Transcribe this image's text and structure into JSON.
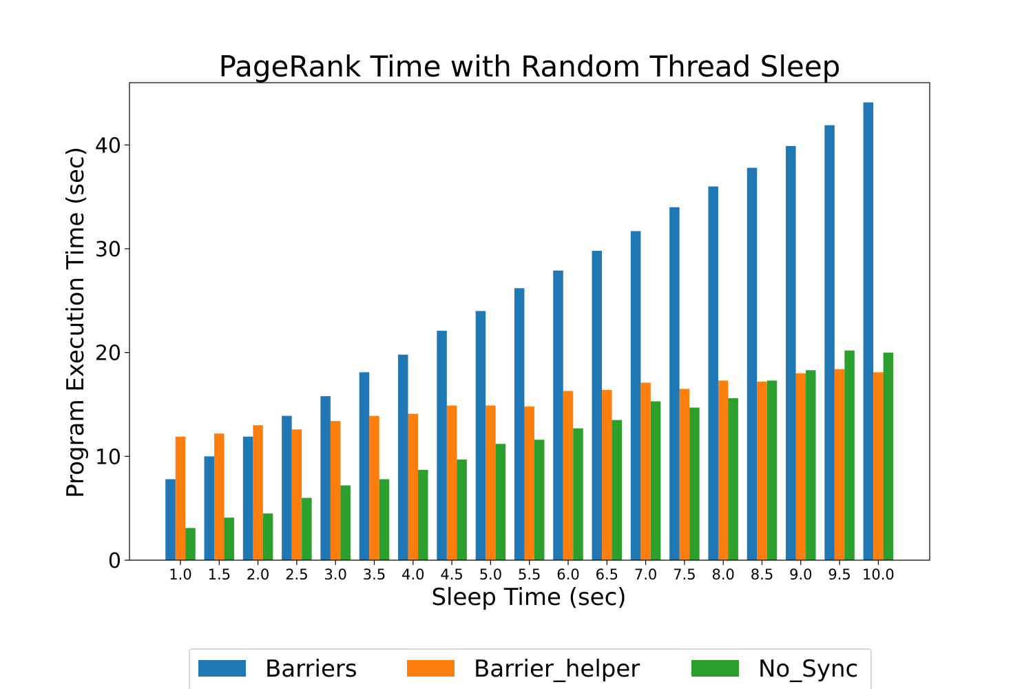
{
  "chart_data": {
    "type": "bar",
    "title": "PageRank Time with Random Thread Sleep",
    "xlabel": "Sleep Time (sec)",
    "ylabel": "Program Execution Time (sec)",
    "ylim": [
      0,
      46
    ],
    "yticks": [
      0,
      10,
      20,
      30,
      40
    ],
    "grid": false,
    "legend_position": "bottom",
    "categories": [
      "1.0",
      "1.5",
      "2.0",
      "2.5",
      "3.0",
      "3.5",
      "4.0",
      "4.5",
      "5.0",
      "5.5",
      "6.0",
      "6.5",
      "7.0",
      "7.5",
      "8.0",
      "8.5",
      "9.0",
      "9.5",
      "10.0"
    ],
    "series": [
      {
        "name": "Barriers",
        "color": "#1f77b4",
        "values": [
          7.8,
          10.0,
          11.9,
          13.9,
          15.8,
          18.1,
          19.8,
          22.1,
          24.0,
          26.2,
          27.9,
          29.8,
          31.7,
          34.0,
          36.0,
          37.8,
          39.9,
          41.9,
          44.1
        ]
      },
      {
        "name": "Barrier_helper",
        "color": "#ff7f0e",
        "values": [
          11.9,
          12.2,
          13.0,
          12.6,
          13.4,
          13.9,
          14.1,
          14.9,
          14.9,
          14.8,
          16.3,
          16.4,
          17.1,
          16.5,
          17.3,
          17.2,
          18.0,
          18.4,
          18.1
        ]
      },
      {
        "name": "No_Sync",
        "color": "#2ca02c",
        "values": [
          3.1,
          4.1,
          4.5,
          6.0,
          7.2,
          7.8,
          8.7,
          9.7,
          11.2,
          11.6,
          12.7,
          13.5,
          15.3,
          14.7,
          15.6,
          17.3,
          18.3,
          20.2,
          20.0
        ]
      }
    ]
  }
}
